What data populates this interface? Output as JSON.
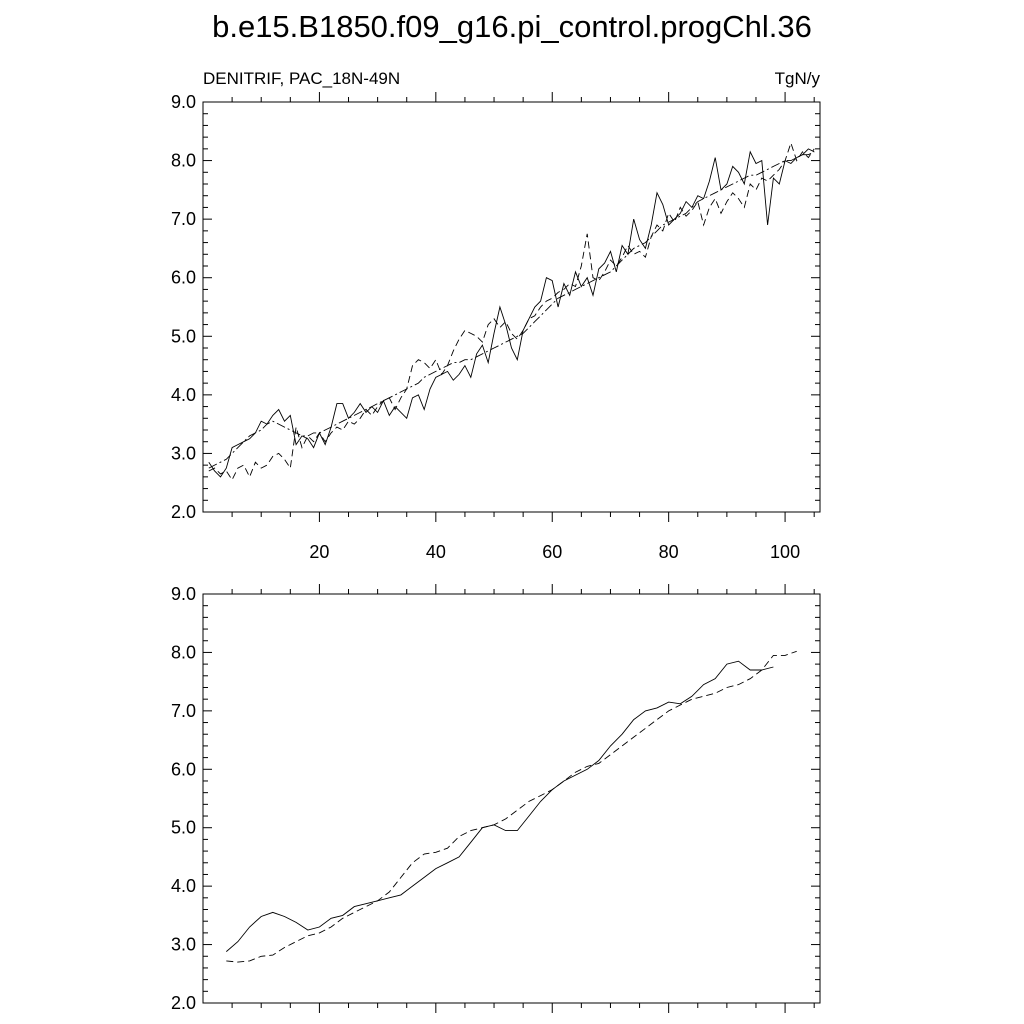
{
  "figure": {
    "title": "b.e15.B1850.f09_g16.pi_control.progChl.36"
  },
  "chart_data": [
    {
      "type": "line",
      "left_label": "DENITRIF, PAC_18N-49N",
      "right_label": "TgN/y",
      "xlim": [
        0,
        106
      ],
      "ylim": [
        2.0,
        9.0
      ],
      "x_ticks": [
        20,
        40,
        60,
        80,
        100
      ],
      "x_tick_labels": [
        "20",
        "40",
        "60",
        "80",
        "100"
      ],
      "y_ticks": [
        2.0,
        3.0,
        4.0,
        5.0,
        6.0,
        7.0,
        8.0,
        9.0
      ],
      "y_tick_labels": [
        "2.0",
        "3.0",
        "4.0",
        "5.0",
        "6.0",
        "7.0",
        "8.0",
        "9.0"
      ],
      "grid": false,
      "series": [
        {
          "style": "solid",
          "x": [
            1,
            2,
            3,
            4,
            5,
            6,
            7,
            8,
            9,
            10,
            11,
            12,
            13,
            14,
            15,
            16,
            17,
            18,
            19,
            20,
            21,
            22,
            23,
            24,
            25,
            26,
            27,
            28,
            29,
            30,
            31,
            32,
            33,
            34,
            35,
            36,
            37,
            38,
            39,
            40,
            41,
            42,
            43,
            44,
            45,
            46,
            47,
            48,
            49,
            50,
            51,
            52,
            53,
            54,
            55,
            56,
            57,
            58,
            59,
            60,
            61,
            62,
            63,
            64,
            65,
            66,
            67,
            68,
            69,
            70,
            71,
            72,
            73,
            74,
            75,
            76,
            77,
            78,
            79,
            80,
            81,
            82,
            83,
            84,
            85,
            86,
            87,
            88,
            89,
            90,
            91,
            92,
            93,
            94,
            95,
            96,
            97,
            98,
            99,
            100,
            101,
            102,
            103,
            104,
            105
          ],
          "y": [
            2.85,
            2.7,
            2.6,
            2.75,
            3.1,
            3.15,
            3.2,
            3.25,
            3.35,
            3.55,
            3.5,
            3.65,
            3.75,
            3.55,
            3.65,
            3.15,
            3.3,
            3.25,
            3.1,
            3.35,
            3.15,
            3.45,
            3.85,
            3.85,
            3.6,
            3.7,
            3.85,
            3.7,
            3.8,
            3.7,
            3.9,
            3.65,
            3.8,
            3.7,
            3.6,
            3.95,
            4.0,
            3.75,
            4.1,
            4.3,
            4.35,
            4.4,
            4.25,
            4.35,
            4.5,
            4.3,
            4.7,
            4.85,
            4.55,
            5.05,
            5.5,
            5.2,
            4.8,
            4.6,
            5.1,
            5.3,
            5.5,
            5.6,
            6.0,
            5.95,
            5.5,
            5.9,
            5.7,
            6.1,
            5.85,
            6.0,
            5.7,
            6.15,
            6.25,
            6.45,
            6.1,
            6.55,
            6.4,
            7.0,
            6.65,
            6.5,
            6.9,
            7.45,
            7.25,
            6.9,
            7.0,
            7.1,
            7.3,
            7.2,
            7.4,
            7.35,
            7.65,
            8.05,
            7.5,
            7.6,
            7.9,
            7.8,
            7.6,
            8.15,
            7.95,
            8.0,
            6.9,
            7.7,
            7.6,
            8.0,
            7.95,
            8.05,
            8.1,
            8.2,
            8.15
          ]
        },
        {
          "style": "dashed",
          "x": [
            1,
            2,
            3,
            4,
            5,
            6,
            7,
            8,
            9,
            10,
            11,
            12,
            13,
            14,
            15,
            16,
            17,
            18,
            19,
            20,
            21,
            22,
            23,
            24,
            25,
            26,
            27,
            28,
            29,
            30,
            31,
            32,
            33,
            34,
            35,
            36,
            37,
            38,
            39,
            40,
            41,
            42,
            43,
            44,
            45,
            46,
            47,
            48,
            49,
            50,
            51,
            52,
            53,
            54,
            55,
            56,
            57,
            58,
            59,
            60,
            61,
            62,
            63,
            64,
            65,
            66,
            67,
            68,
            69,
            70,
            71,
            72,
            73,
            74,
            75,
            76,
            77,
            78,
            79,
            80,
            81,
            82,
            83,
            84,
            85,
            86,
            87,
            88,
            89,
            90,
            91,
            92,
            93,
            94,
            95,
            96,
            97,
            98,
            99,
            100,
            101,
            102,
            103,
            104,
            105
          ],
          "y": [
            2.7,
            2.75,
            2.65,
            2.7,
            2.55,
            2.75,
            2.8,
            2.6,
            2.85,
            2.75,
            2.8,
            2.95,
            3.0,
            2.9,
            2.75,
            3.45,
            3.1,
            3.3,
            3.2,
            3.35,
            3.2,
            3.35,
            3.45,
            3.4,
            3.55,
            3.5,
            3.6,
            3.75,
            3.65,
            3.8,
            3.9,
            3.95,
            3.75,
            3.95,
            4.1,
            4.5,
            4.6,
            4.55,
            4.45,
            4.6,
            4.35,
            4.5,
            4.75,
            4.95,
            5.1,
            5.05,
            5.0,
            4.9,
            5.2,
            5.3,
            5.15,
            5.25,
            5.05,
            4.95,
            5.1,
            5.3,
            5.35,
            5.5,
            5.6,
            5.65,
            5.75,
            5.8,
            5.9,
            5.85,
            6.2,
            6.75,
            6.0,
            5.95,
            6.1,
            6.3,
            6.2,
            6.35,
            6.55,
            6.4,
            6.45,
            6.35,
            6.7,
            6.9,
            6.8,
            7.1,
            6.95,
            7.2,
            7.05,
            7.15,
            7.3,
            6.9,
            7.2,
            7.35,
            7.1,
            7.3,
            7.45,
            7.35,
            7.2,
            7.6,
            7.5,
            7.7,
            7.65,
            7.75,
            7.85,
            8.0,
            8.3,
            8.0,
            8.15,
            8.05,
            8.2
          ]
        },
        {
          "style": "dashdot",
          "x": [
            1,
            2,
            3,
            4,
            5,
            6,
            7,
            8,
            9,
            10,
            11,
            12,
            13,
            14,
            15,
            16,
            17,
            18,
            19,
            20,
            21,
            22,
            23,
            24,
            25,
            26,
            27,
            28,
            29,
            30,
            31,
            32,
            33,
            34,
            35,
            36,
            37,
            38,
            39,
            40,
            41,
            42,
            43,
            44,
            45,
            46,
            47,
            48,
            49,
            50,
            51,
            52,
            53,
            54,
            55,
            56,
            57,
            58,
            59,
            60,
            61,
            62,
            63,
            64,
            65,
            66,
            67,
            68,
            69,
            70,
            71,
            72,
            73,
            74,
            75,
            76,
            77,
            78,
            79,
            80,
            81,
            82,
            83,
            84,
            85,
            86,
            87,
            88,
            89,
            90,
            91,
            92,
            93,
            94,
            95,
            96,
            97,
            98,
            99,
            100,
            101,
            102,
            103,
            104,
            105
          ],
          "y": [
            2.75,
            2.8,
            2.85,
            2.9,
            3.0,
            3.1,
            3.2,
            3.3,
            3.35,
            3.4,
            3.5,
            3.55,
            3.5,
            3.45,
            3.4,
            3.35,
            3.3,
            3.3,
            3.35,
            3.35,
            3.4,
            3.45,
            3.5,
            3.55,
            3.6,
            3.65,
            3.7,
            3.75,
            3.8,
            3.85,
            3.9,
            3.95,
            4.0,
            4.05,
            4.1,
            4.15,
            4.2,
            4.3,
            4.35,
            4.4,
            4.45,
            4.5,
            4.55,
            4.55,
            4.6,
            4.6,
            4.65,
            4.7,
            4.75,
            4.8,
            4.85,
            4.9,
            4.95,
            5.0,
            5.05,
            5.15,
            5.25,
            5.35,
            5.45,
            5.55,
            5.65,
            5.7,
            5.75,
            5.8,
            5.85,
            5.9,
            5.95,
            6.0,
            6.05,
            6.1,
            6.2,
            6.3,
            6.4,
            6.5,
            6.55,
            6.6,
            6.7,
            6.8,
            6.9,
            6.95,
            7.0,
            7.05,
            7.1,
            7.2,
            7.3,
            7.35,
            7.4,
            7.45,
            7.5,
            7.55,
            7.6,
            7.65,
            7.7,
            7.75,
            7.75,
            7.8,
            7.85,
            7.9,
            7.95,
            8.0,
            8.0,
            8.05,
            8.1,
            8.1,
            8.15
          ]
        }
      ]
    },
    {
      "type": "line",
      "xlim": [
        0,
        106
      ],
      "ylim": [
        2.0,
        9.0
      ],
      "x_ticks": [
        20,
        40,
        60,
        80,
        100
      ],
      "y_ticks": [
        2.0,
        3.0,
        4.0,
        5.0,
        6.0,
        7.0,
        8.0,
        9.0
      ],
      "y_tick_labels": [
        "2.0",
        "3.0",
        "4.0",
        "5.0",
        "6.0",
        "7.0",
        "8.0",
        "9.0"
      ],
      "grid": false,
      "series": [
        {
          "style": "solid",
          "x": [
            4,
            6,
            8,
            10,
            12,
            14,
            16,
            18,
            20,
            22,
            24,
            26,
            28,
            30,
            32,
            34,
            36,
            38,
            40,
            42,
            44,
            46,
            48,
            50,
            52,
            54,
            56,
            58,
            60,
            62,
            64,
            66,
            68,
            70,
            72,
            74,
            76,
            78,
            80,
            82,
            84,
            86,
            88,
            90,
            92,
            94,
            96,
            98
          ],
          "y": [
            2.88,
            3.05,
            3.3,
            3.48,
            3.55,
            3.48,
            3.38,
            3.25,
            3.3,
            3.45,
            3.5,
            3.65,
            3.7,
            3.75,
            3.8,
            3.85,
            4.0,
            4.15,
            4.3,
            4.4,
            4.5,
            4.75,
            5.0,
            5.05,
            4.95,
            4.95,
            5.2,
            5.45,
            5.65,
            5.8,
            5.9,
            6.0,
            6.15,
            6.4,
            6.6,
            6.85,
            7.0,
            7.05,
            7.15,
            7.12,
            7.25,
            7.45,
            7.55,
            7.8,
            7.85,
            7.7,
            7.7,
            7.75
          ]
        },
        {
          "style": "dashed",
          "x": [
            4,
            6,
            8,
            10,
            12,
            14,
            16,
            18,
            20,
            22,
            24,
            26,
            28,
            30,
            32,
            34,
            36,
            38,
            40,
            42,
            44,
            46,
            48,
            50,
            52,
            54,
            56,
            58,
            60,
            62,
            64,
            66,
            68,
            70,
            72,
            74,
            76,
            78,
            80,
            82,
            84,
            86,
            88,
            90,
            92,
            94,
            96,
            98,
            100,
            102
          ],
          "y": [
            2.72,
            2.7,
            2.72,
            2.8,
            2.82,
            2.95,
            3.05,
            3.15,
            3.2,
            3.3,
            3.45,
            3.55,
            3.65,
            3.75,
            3.9,
            4.15,
            4.4,
            4.55,
            4.58,
            4.65,
            4.85,
            4.95,
            5.0,
            5.05,
            5.15,
            5.3,
            5.45,
            5.55,
            5.65,
            5.8,
            5.95,
            6.05,
            6.1,
            6.25,
            6.4,
            6.55,
            6.7,
            6.85,
            7.0,
            7.1,
            7.2,
            7.25,
            7.3,
            7.4,
            7.45,
            7.55,
            7.7,
            7.95,
            7.95,
            8.02
          ]
        }
      ]
    }
  ]
}
